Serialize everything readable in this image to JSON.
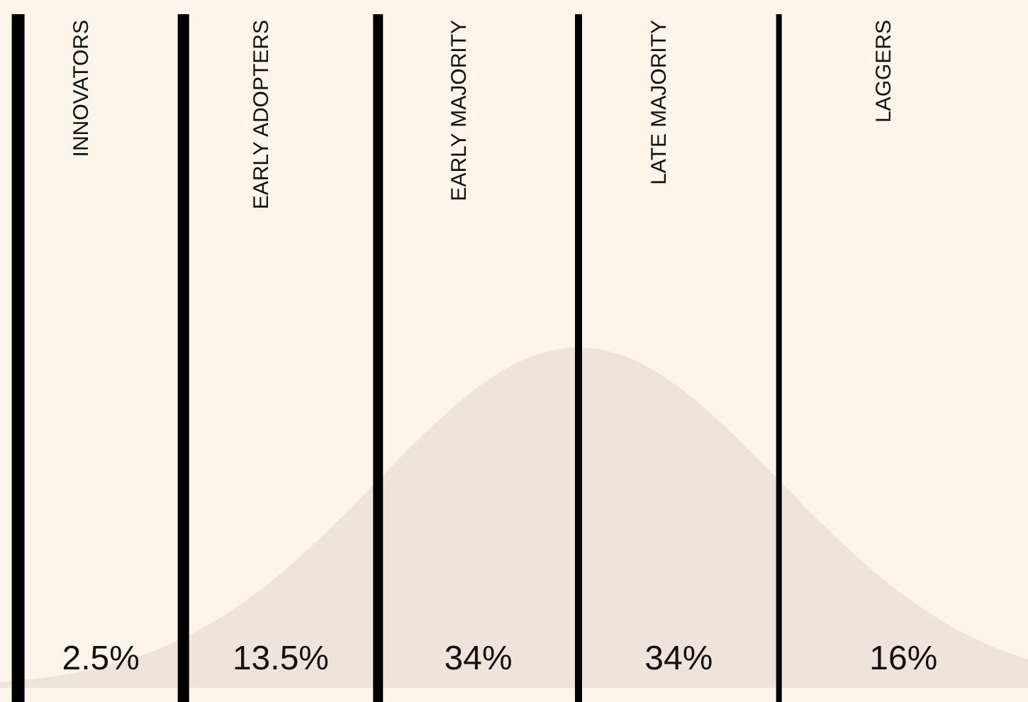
{
  "chart_data": {
    "type": "other",
    "categories": [
      "INNOVATORS",
      "EARLY ADOPTERS",
      "EARLY MAJORITY",
      "LATE MAJORITY",
      "LAGGERS"
    ],
    "values": [
      2.5,
      13.5,
      34,
      34,
      16
    ],
    "value_labels": [
      "2.5%",
      "13.5%",
      "34%",
      "34%",
      "16%"
    ]
  }
}
